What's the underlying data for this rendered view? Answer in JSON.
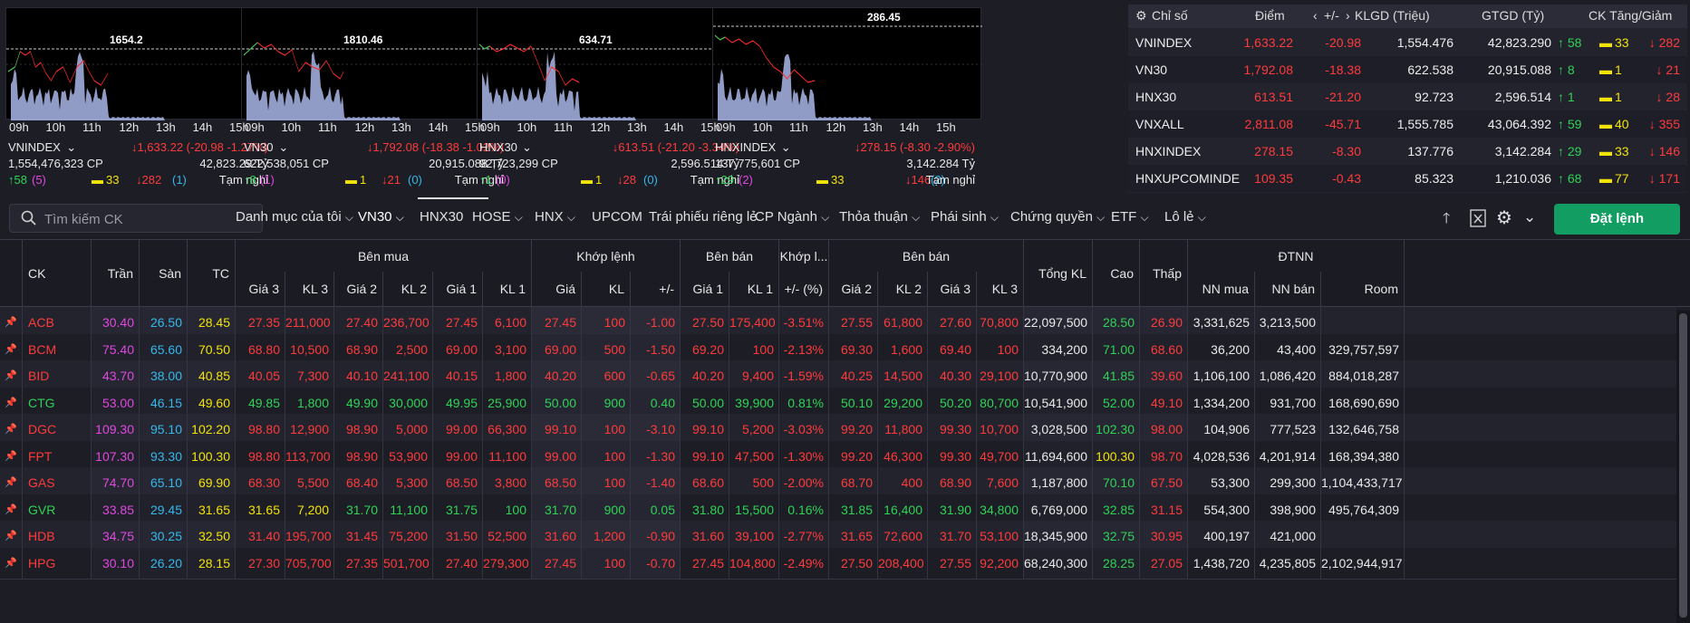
{
  "time_ticks": [
    "09h",
    "10h",
    "11h",
    "12h",
    "13h",
    "14h",
    "15h"
  ],
  "charts": [
    {
      "name": "VNINDEX",
      "ref": "1654.2",
      "value": "↓1,633.22 (-20.98 -1.27%)",
      "volume": "1,554,476,323 CP",
      "turnover": "42,823.29 Tỷ",
      "up": "↑58",
      "up_ceil": "(5)",
      "flat": "33",
      "down": "↓282",
      "down_floor": "(1)",
      "status": "Tạm nghỉ"
    },
    {
      "name": "VN30",
      "ref": "1810.46",
      "value": "↓1,792.08 (-18.38 -1.02%)",
      "volume": "622,538,051 CP",
      "turnover": "20,915.088 Tỷ",
      "up": "↑8",
      "up_ceil": "(1)",
      "flat": "1",
      "down": "↓21",
      "down_floor": "(0)",
      "status": "Tạm nghỉ"
    },
    {
      "name": "HNX30",
      "ref": "634.71",
      "value": "↓613.51 (-21.20 -3.34%)",
      "volume": "92,723,299 CP",
      "turnover": "2,596.514 Tỷ",
      "up": "↑1",
      "up_ceil": "(0)",
      "flat": "1",
      "down": "↓28",
      "down_floor": "(0)",
      "status": "Tạm nghỉ"
    },
    {
      "name": "HNXINDEX",
      "ref": "286.45",
      "value": "↓278.15 (-8.30 -2.90%)",
      "volume": "137,775,601 CP",
      "turnover": "3,142.284 Tỷ",
      "up": "↑29",
      "up_ceil": "(2)",
      "flat": "33",
      "down": "↓146",
      "down_floor": "(2)",
      "status": "Tạm nghỉ"
    }
  ],
  "index_table": {
    "headers": {
      "name": "Chỉ số",
      "point": "Điểm",
      "change": "+/-",
      "vol": "KLGD (Triệu)",
      "val": "GTGD (Tỷ)",
      "breadth": "CK Tăng/Giảm"
    },
    "rows": [
      {
        "name": "VNINDEX",
        "point": "1,633.22",
        "change": "-20.98",
        "vol": "1,554.476",
        "val": "42,823.290",
        "up": "↑ 58",
        "flat": "33",
        "down": "↓ 282"
      },
      {
        "name": "VN30",
        "point": "1,792.08",
        "change": "-18.38",
        "vol": "622.538",
        "val": "20,915.088",
        "up": "↑ 8",
        "flat": "1",
        "down": "↓ 21"
      },
      {
        "name": "HNX30",
        "point": "613.51",
        "change": "-21.20",
        "vol": "92.723",
        "val": "2,596.514",
        "up": "↑ 1",
        "flat": "1",
        "down": "↓ 28"
      },
      {
        "name": "VNXALL",
        "point": "2,811.08",
        "change": "-45.71",
        "vol": "1,555.785",
        "val": "43,064.392",
        "up": "↑ 59",
        "flat": "40",
        "down": "↓ 355"
      },
      {
        "name": "HNXINDEX",
        "point": "278.15",
        "change": "-8.30",
        "vol": "137.776",
        "val": "3,142.284",
        "up": "↑ 29",
        "flat": "33",
        "down": "↓ 146"
      },
      {
        "name": "HNXUPCOMINDE",
        "point": "109.35",
        "change": "-0.43",
        "vol": "85.323",
        "val": "1,210.036",
        "up": "↑ 68",
        "flat": "77",
        "down": "↓ 171"
      }
    ]
  },
  "toolbar": {
    "search_placeholder": "Tìm kiếm CK",
    "tabs": [
      "Danh mục của tôi",
      "VN30",
      "HNX30",
      "HOSE",
      "HNX",
      "UPCOM",
      "Trái phiếu riêng lẻ",
      "CP Ngành",
      "Thỏa thuận",
      "Phái sinh",
      "Chứng quyền",
      "ETF",
      "Lô lẻ"
    ],
    "order_button": "Đặt lệnh"
  },
  "table_headers": {
    "ck": "CK",
    "tran": "Trần",
    "san": "Sàn",
    "tc": "TC",
    "ben_mua": "Bên mua",
    "khop_lenh": "Khớp lệnh",
    "ben_ban": "Bên bán",
    "khop_l": "Khớp l...",
    "ben_ban2": "Bên bán",
    "tong_kl": "Tổng KL",
    "cao": "Cao",
    "thap": "Thấp",
    "dtnn": "ĐTNN",
    "sub": [
      "Giá 3",
      "KL 3",
      "Giá 2",
      "KL 2",
      "Giá 1",
      "KL 1",
      "Giá",
      "KL",
      "+/-",
      "Giá 1",
      "KL 1",
      "+/- (%)",
      "Giá 2",
      "KL 2",
      "Giá 3",
      "KL 3",
      "NN mua",
      "NN bán",
      "Room"
    ]
  },
  "stocks": [
    {
      "ck": "ACB",
      "tran": "30.40",
      "san": "26.50",
      "tc": "28.45",
      "b3": "27.35",
      "bk3": "211,000",
      "b2": "27.40",
      "bk2": "236,700",
      "b1": "27.45",
      "bk1": "6,100",
      "p": "27.45",
      "kl": "100",
      "chg": "-1.00",
      "s1": "27.50",
      "sk1": "175,400",
      "pct": "-3.51%",
      "s2": "27.55",
      "sk2": "61,800",
      "s3": "27.60",
      "sk3": "70,800",
      "tkl": "22,097,500",
      "cao": "28.50",
      "thap": "26.90",
      "nnm": "3,331,625",
      "nnb": "3,213,500",
      "room": ""
    },
    {
      "ck": "BCM",
      "tran": "75.40",
      "san": "65.60",
      "tc": "70.50",
      "b3": "68.80",
      "bk3": "10,500",
      "b2": "68.90",
      "bk2": "2,500",
      "b1": "69.00",
      "bk1": "3,100",
      "p": "69.00",
      "kl": "500",
      "chg": "-1.50",
      "s1": "69.20",
      "sk1": "100",
      "pct": "-2.13%",
      "s2": "69.30",
      "sk2": "1,600",
      "s3": "69.40",
      "sk3": "100",
      "tkl": "334,200",
      "cao": "71.00",
      "thap": "68.60",
      "nnm": "36,200",
      "nnb": "43,400",
      "room": "329,757,597"
    },
    {
      "ck": "BID",
      "tran": "43.70",
      "san": "38.00",
      "tc": "40.85",
      "b3": "40.05",
      "bk3": "7,300",
      "b2": "40.10",
      "bk2": "241,100",
      "b1": "40.15",
      "bk1": "1,800",
      "p": "40.20",
      "kl": "600",
      "chg": "-0.65",
      "s1": "40.20",
      "sk1": "9,400",
      "pct": "-1.59%",
      "s2": "40.25",
      "sk2": "14,500",
      "s3": "40.30",
      "sk3": "29,100",
      "tkl": "10,770,900",
      "cao": "41.85",
      "thap": "39.60",
      "nnm": "1,106,100",
      "nnb": "1,086,420",
      "room": "884,018,287"
    },
    {
      "ck": "CTG",
      "tran": "53.00",
      "san": "46.15",
      "tc": "49.60",
      "b3": "49.85",
      "bk3": "1,800",
      "b2": "49.90",
      "bk2": "30,000",
      "b1": "49.95",
      "bk1": "25,900",
      "p": "50.00",
      "kl": "900",
      "chg": "0.40",
      "s1": "50.00",
      "sk1": "39,900",
      "pct": "0.81%",
      "s2": "50.10",
      "sk2": "29,200",
      "s3": "50.20",
      "sk3": "80,700",
      "tkl": "10,541,900",
      "cao": "52.00",
      "thap": "49.10",
      "nnm": "1,334,200",
      "nnb": "931,700",
      "room": "168,690,690"
    },
    {
      "ck": "DGC",
      "tran": "109.30",
      "san": "95.10",
      "tc": "102.20",
      "b3": "98.80",
      "bk3": "12,900",
      "b2": "98.90",
      "bk2": "5,000",
      "b1": "99.00",
      "bk1": "66,300",
      "p": "99.10",
      "kl": "100",
      "chg": "-3.10",
      "s1": "99.10",
      "sk1": "5,200",
      "pct": "-3.03%",
      "s2": "99.20",
      "sk2": "11,800",
      "s3": "99.30",
      "sk3": "10,700",
      "tkl": "3,028,500",
      "cao": "102.30",
      "thap": "98.00",
      "nnm": "104,906",
      "nnb": "777,523",
      "room": "132,646,758"
    },
    {
      "ck": "FPT",
      "tran": "107.30",
      "san": "93.30",
      "tc": "100.30",
      "b3": "98.80",
      "bk3": "113,700",
      "b2": "98.90",
      "bk2": "53,900",
      "b1": "99.00",
      "bk1": "11,100",
      "p": "99.00",
      "kl": "100",
      "chg": "-1.30",
      "s1": "99.10",
      "sk1": "47,500",
      "pct": "-1.30%",
      "s2": "99.20",
      "sk2": "46,300",
      "s3": "99.30",
      "sk3": "49,700",
      "tkl": "11,694,600",
      "cao": "100.30",
      "thap": "98.70",
      "nnm": "4,028,536",
      "nnb": "4,201,914",
      "room": "168,394,380"
    },
    {
      "ck": "GAS",
      "tran": "74.70",
      "san": "65.10",
      "tc": "69.90",
      "b3": "68.30",
      "bk3": "5,500",
      "b2": "68.40",
      "bk2": "5,300",
      "b1": "68.50",
      "bk1": "3,800",
      "p": "68.50",
      "kl": "100",
      "chg": "-1.40",
      "s1": "68.60",
      "sk1": "500",
      "pct": "-2.00%",
      "s2": "68.70",
      "sk2": "400",
      "s3": "68.90",
      "sk3": "7,600",
      "tkl": "1,187,800",
      "cao": "70.10",
      "thap": "67.50",
      "nnm": "53,300",
      "nnb": "299,300",
      "room": "1,104,433,717"
    },
    {
      "ck": "GVR",
      "tran": "33.85",
      "san": "29.45",
      "tc": "31.65",
      "b3": "31.65",
      "bk3": "7,200",
      "b2": "31.70",
      "bk2": "11,100",
      "b1": "31.75",
      "bk1": "100",
      "p": "31.70",
      "kl": "900",
      "chg": "0.05",
      "s1": "31.80",
      "sk1": "15,500",
      "pct": "0.16%",
      "s2": "31.85",
      "sk2": "16,400",
      "s3": "31.90",
      "sk3": "34,800",
      "tkl": "6,769,000",
      "cao": "32.85",
      "thap": "31.15",
      "nnm": "554,300",
      "nnb": "398,900",
      "room": "495,764,309"
    },
    {
      "ck": "HDB",
      "tran": "34.75",
      "san": "30.25",
      "tc": "32.50",
      "b3": "31.40",
      "bk3": "195,700",
      "b2": "31.45",
      "bk2": "75,200",
      "b1": "31.50",
      "bk1": "52,500",
      "p": "31.60",
      "kl": "1,200",
      "chg": "-0.90",
      "s1": "31.60",
      "sk1": "39,100",
      "pct": "-2.77%",
      "s2": "31.65",
      "sk2": "72,600",
      "s3": "31.70",
      "sk3": "53,100",
      "tkl": "18,345,900",
      "cao": "32.75",
      "thap": "30.95",
      "nnm": "400,197",
      "nnb": "421,000",
      "room": ""
    },
    {
      "ck": "HPG",
      "tran": "30.10",
      "san": "26.20",
      "tc": "28.15",
      "b3": "27.30",
      "bk3": "705,700",
      "b2": "27.35",
      "bk2": "501,700",
      "b1": "27.40",
      "bk1": "279,300",
      "p": "27.45",
      "kl": "100",
      "chg": "-0.70",
      "s1": "27.45",
      "sk1": "104,800",
      "pct": "-2.49%",
      "s2": "27.50",
      "sk2": "208,400",
      "s3": "27.55",
      "sk3": "92,200",
      "tkl": "68,240,300",
      "cao": "28.25",
      "thap": "27.05",
      "nnm": "1,438,720",
      "nnb": "4,235,805",
      "room": "2,102,944,917"
    }
  ],
  "colors": {
    "up": "#2fd356",
    "down": "#ff3b3b",
    "ref": "#f2e307",
    "ceil": "#e048e0",
    "floor": "#33b9ea",
    "order_btn": "#129d63"
  }
}
